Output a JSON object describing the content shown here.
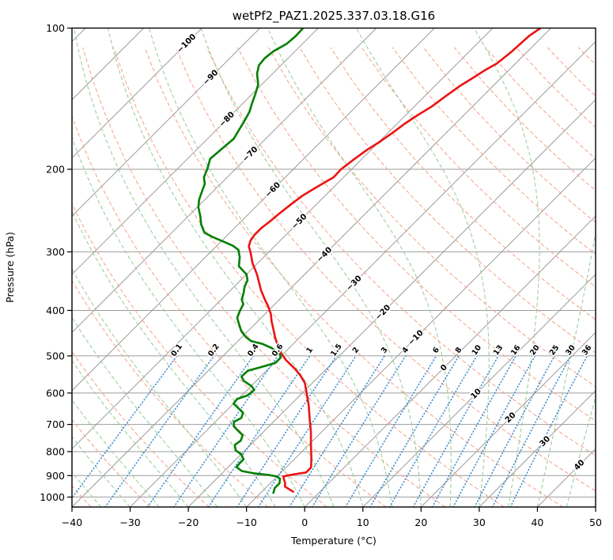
{
  "title": "wetPf2_PAZ1.2025.337.03.18.G16",
  "axes": {
    "x_label": "Temperature (°C)",
    "y_label": "Pressure (hPa)",
    "x_ticks": [
      -40,
      -30,
      -20,
      -10,
      0,
      10,
      20,
      30,
      40,
      50
    ],
    "y_ticks": [
      100,
      200,
      300,
      400,
      500,
      600,
      700,
      800,
      900,
      1000
    ],
    "x_min": -40,
    "x_max": 50,
    "p_top": 100,
    "p_bottom": 1050,
    "grid": true
  },
  "chart_data": {
    "type": "line",
    "projection": "skew-t-log-p",
    "skew_deg": 45,
    "title": "wetPf2_PAZ1.2025.337.03.18.G16",
    "xlabel": "Temperature (°C)",
    "ylabel": "Pressure (hPa)",
    "xlim": [
      -40,
      50
    ],
    "plim": [
      1050,
      100
    ],
    "series": [
      {
        "name": "temperature",
        "color": "#ec1212",
        "width": 2.6,
        "points_p_t": [
          [
            100,
            -41.8
          ],
          [
            104,
            -42.4
          ],
          [
            112,
            -42.7
          ],
          [
            119,
            -43.2
          ],
          [
            123,
            -44.1
          ],
          [
            128,
            -44.9
          ],
          [
            133,
            -45.7
          ],
          [
            140,
            -46.4
          ],
          [
            147,
            -47.0
          ],
          [
            153,
            -47.9
          ],
          [
            160,
            -48.7
          ],
          [
            167,
            -49.2
          ],
          [
            175,
            -49.9
          ],
          [
            182,
            -50.7
          ],
          [
            191,
            -51.3
          ],
          [
            200,
            -51.8
          ],
          [
            208,
            -51.7
          ],
          [
            212,
            -52.2
          ],
          [
            220,
            -53.1
          ],
          [
            228,
            -53.9
          ],
          [
            238,
            -54.4
          ],
          [
            249,
            -54.8
          ],
          [
            259,
            -55.1
          ],
          [
            267,
            -55.4
          ],
          [
            276,
            -55.4
          ],
          [
            284,
            -55.1
          ],
          [
            292,
            -54.4
          ],
          [
            302,
            -52.9
          ],
          [
            317,
            -50.9
          ],
          [
            335,
            -48.2
          ],
          [
            349,
            -46.4
          ],
          [
            362,
            -44.8
          ],
          [
            380,
            -42.4
          ],
          [
            391,
            -40.9
          ],
          [
            407,
            -39.0
          ],
          [
            423,
            -37.5
          ],
          [
            439,
            -35.9
          ],
          [
            456,
            -34.3
          ],
          [
            473,
            -32.6
          ],
          [
            495,
            -30.3
          ],
          [
            511,
            -28.4
          ],
          [
            533,
            -25.4
          ],
          [
            550,
            -23.4
          ],
          [
            571,
            -21.3
          ],
          [
            598,
            -19.4
          ],
          [
            637,
            -16.8
          ],
          [
            681,
            -14.3
          ],
          [
            727,
            -11.8
          ],
          [
            774,
            -9.6
          ],
          [
            827,
            -7.2
          ],
          [
            865,
            -5.7
          ],
          [
            886,
            -5.7
          ],
          [
            892,
            -7.0
          ],
          [
            898,
            -8.1
          ],
          [
            904,
            -8.9
          ],
          [
            917,
            -8.3
          ],
          [
            933,
            -7.5
          ],
          [
            950,
            -6.9
          ],
          [
            974,
            -4.6
          ]
        ]
      },
      {
        "name": "dewpoint",
        "color": "#008000",
        "width": 2.6,
        "points_p_t": [
          [
            100,
            -82.6
          ],
          [
            104,
            -82.5
          ],
          [
            108,
            -82.7
          ],
          [
            112,
            -83.7
          ],
          [
            116,
            -84.0
          ],
          [
            120,
            -83.8
          ],
          [
            125,
            -82.7
          ],
          [
            132,
            -80.6
          ],
          [
            138,
            -79.5
          ],
          [
            145,
            -78.4
          ],
          [
            151,
            -77.4
          ],
          [
            158,
            -76.7
          ],
          [
            165,
            -76.1
          ],
          [
            172,
            -75.5
          ],
          [
            178,
            -75.7
          ],
          [
            184,
            -75.9
          ],
          [
            190,
            -76.1
          ],
          [
            200,
            -74.8
          ],
          [
            208,
            -74.0
          ],
          [
            215,
            -72.7
          ],
          [
            221,
            -72.1
          ],
          [
            232,
            -71.0
          ],
          [
            241,
            -69.8
          ],
          [
            252,
            -67.9
          ],
          [
            262,
            -66.4
          ],
          [
            273,
            -64.4
          ],
          [
            279,
            -62.2
          ],
          [
            285,
            -59.7
          ],
          [
            291,
            -57.3
          ],
          [
            297,
            -55.6
          ],
          [
            308,
            -54.1
          ],
          [
            322,
            -52.7
          ],
          [
            335,
            -50.0
          ],
          [
            345,
            -48.8
          ],
          [
            356,
            -48.2
          ],
          [
            367,
            -47.3
          ],
          [
            379,
            -46.5
          ],
          [
            388,
            -45.4
          ],
          [
            402,
            -44.8
          ],
          [
            415,
            -44.1
          ],
          [
            428,
            -42.7
          ],
          [
            443,
            -41.1
          ],
          [
            456,
            -39.3
          ],
          [
            465,
            -37.7
          ],
          [
            471,
            -35.4
          ],
          [
            481,
            -33.0
          ],
          [
            495,
            -30.6
          ],
          [
            504,
            -29.8
          ],
          [
            517,
            -29.8
          ],
          [
            528,
            -31.5
          ],
          [
            538,
            -33.2
          ],
          [
            553,
            -33.3
          ],
          [
            565,
            -32.2
          ],
          [
            580,
            -29.9
          ],
          [
            591,
            -28.8
          ],
          [
            607,
            -29.0
          ],
          [
            618,
            -30.2
          ],
          [
            632,
            -30.0
          ],
          [
            649,
            -28.1
          ],
          [
            661,
            -26.8
          ],
          [
            678,
            -26.2
          ],
          [
            691,
            -26.8
          ],
          [
            706,
            -26.1
          ],
          [
            725,
            -24.3
          ],
          [
            738,
            -23.0
          ],
          [
            758,
            -22.4
          ],
          [
            774,
            -22.7
          ],
          [
            795,
            -21.6
          ],
          [
            810,
            -20.0
          ],
          [
            831,
            -18.7
          ],
          [
            847,
            -18.7
          ],
          [
            863,
            -18.6
          ],
          [
            880,
            -17.0
          ],
          [
            890,
            -14.5
          ],
          [
            897,
            -11.8
          ],
          [
            904,
            -10.0
          ],
          [
            914,
            -9.1
          ],
          [
            935,
            -8.4
          ],
          [
            957,
            -8.4
          ],
          [
            980,
            -7.8
          ]
        ]
      }
    ],
    "isotherms": {
      "t_start": -120,
      "t_end": 50,
      "step": 10,
      "color": "#9b9b9b",
      "width": 1
    },
    "isobars": {
      "levels": [
        100,
        200,
        300,
        400,
        500,
        600,
        700,
        800,
        900,
        1000
      ],
      "color": "#9b9b9b",
      "width": 1
    },
    "dry_adiabats": {
      "theta_start": -40,
      "theta_end": 350,
      "step": 10,
      "color": "#f7a088",
      "width": 1,
      "dash": "5 3"
    },
    "moist_adiabats": {
      "t0_start": -40,
      "t0_end": 60,
      "step": 5,
      "color": "#95cb95",
      "width": 1,
      "dash": "5 3"
    },
    "mixing_ratio": {
      "values_g_kg": [
        0.1,
        0.2,
        0.4,
        0.6,
        1,
        1.5,
        2,
        3,
        4,
        6,
        8,
        10,
        13,
        16,
        20,
        25,
        30,
        36
      ],
      "p_bottom": 1050,
      "p_top": 500,
      "color": "#3f8fd2",
      "label_color": "#1f77b4",
      "width": 1.6,
      "dash": "0.8 3.2"
    },
    "isotherm_labels": [
      {
        "t": -100,
        "y": 55
      },
      {
        "t": -90,
        "y": 98
      },
      {
        "t": -80,
        "y": 151
      },
      {
        "t": -70,
        "y": 195
      },
      {
        "t": -60,
        "y": 240
      },
      {
        "t": -50,
        "y": 280
      },
      {
        "t": -40,
        "y": 322
      },
      {
        "t": -30,
        "y": 358
      },
      {
        "t": -20,
        "y": 395
      },
      {
        "t": -10,
        "y": 427
      },
      {
        "t": 0,
        "y": 465
      },
      {
        "t": 10,
        "y": 498
      },
      {
        "t": 20,
        "y": 528
      },
      {
        "t": 30,
        "y": 558
      },
      {
        "t": 40,
        "y": 588
      }
    ],
    "isotherm_label_colors": {
      "negative": "#1f77b4",
      "zero": "#808080",
      "positive": "#d62728"
    }
  }
}
